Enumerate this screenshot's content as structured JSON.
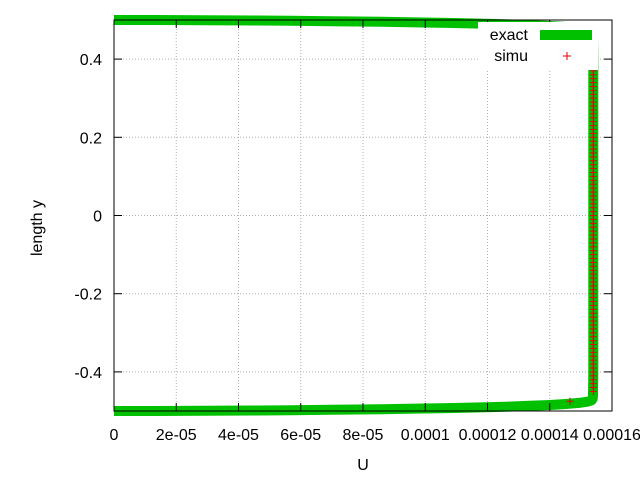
{
  "chart_data": {
    "type": "line",
    "title": "",
    "xlabel": "U",
    "ylabel": "length y",
    "xlim": [
      0,
      0.00016
    ],
    "ylim": [
      -0.5,
      0.5
    ],
    "grid": true,
    "legend_position": "top-right",
    "x_ticks": [
      0,
      2e-05,
      4e-05,
      6e-05,
      8e-05,
      0.0001,
      0.00012,
      0.00014,
      0.00016
    ],
    "x_tick_labels": [
      "0",
      "2e-05",
      "4e-05",
      "6e-05",
      "8e-05",
      "0.0001",
      "0.00012",
      "0.00014",
      "0.00016"
    ],
    "y_ticks": [
      -0.4,
      -0.2,
      0,
      0.2,
      0.4
    ],
    "y_tick_labels": [
      "-0.4",
      "-0.2",
      "0",
      "0.2",
      "0.4"
    ],
    "series": [
      {
        "name": "exact",
        "color": "#00c000",
        "style": "line",
        "points": [
          [
            0.0,
            0.5
          ],
          [
            1.35e-05,
            0.4999
          ],
          [
            2.85e-05,
            0.4995
          ],
          [
            4.59e-05,
            0.4987
          ],
          [
            5.69e-05,
            0.498
          ],
          [
            6.98e-05,
            0.497
          ],
          [
            8.22e-05,
            0.4958
          ],
          [
            9.04e-05,
            0.4949
          ],
          [
            9.94e-05,
            0.4937
          ],
          [
            0.0001072,
            0.4925
          ],
          [
            0.0001143,
            0.4913
          ],
          [
            0.0001213,
            0.4899
          ],
          [
            0.0001279,
            0.4884
          ],
          [
            0.0001335,
            0.4868
          ],
          [
            0.0001393,
            0.4848
          ],
          [
            0.0001446,
            0.4823
          ],
          [
            0.0001494,
            0.4792
          ],
          [
            0.0001521,
            0.4763
          ],
          [
            0.0001534,
            0.4732
          ],
          [
            0.0001538,
            0.469
          ],
          [
            0.0001539,
            0.46
          ],
          [
            0.000154,
            0.4
          ],
          [
            0.000154,
            0.2
          ],
          [
            0.000154,
            0.0
          ],
          [
            0.000154,
            -0.2
          ],
          [
            0.000154,
            -0.4
          ],
          [
            0.0001539,
            -0.46
          ],
          [
            0.0001538,
            -0.469
          ],
          [
            0.0001534,
            -0.4732
          ],
          [
            0.0001521,
            -0.4763
          ],
          [
            0.0001494,
            -0.4792
          ],
          [
            0.0001446,
            -0.4823
          ],
          [
            0.0001393,
            -0.4848
          ],
          [
            0.0001335,
            -0.4868
          ],
          [
            0.0001279,
            -0.4884
          ],
          [
            0.0001213,
            -0.4899
          ],
          [
            0.0001143,
            -0.4913
          ],
          [
            0.0001072,
            -0.4925
          ],
          [
            9.94e-05,
            -0.4937
          ],
          [
            9.04e-05,
            -0.4949
          ],
          [
            8.22e-05,
            -0.4958
          ],
          [
            6.98e-05,
            -0.497
          ],
          [
            5.69e-05,
            -0.498
          ],
          [
            4.59e-05,
            -0.4987
          ],
          [
            2.85e-05,
            -0.4995
          ],
          [
            1.35e-05,
            -0.4999
          ],
          [
            0.0,
            -0.5
          ]
        ]
      },
      {
        "name": "simu",
        "color": "#e00000",
        "style": "points",
        "marker": "+",
        "x": 0.000154,
        "y_start": -0.45,
        "y_end": 0.45,
        "y_step": 0.01,
        "extra_points": [
          [
            0.0001465,
            0.475
          ],
          [
            0.0001465,
            -0.475
          ]
        ]
      }
    ]
  }
}
